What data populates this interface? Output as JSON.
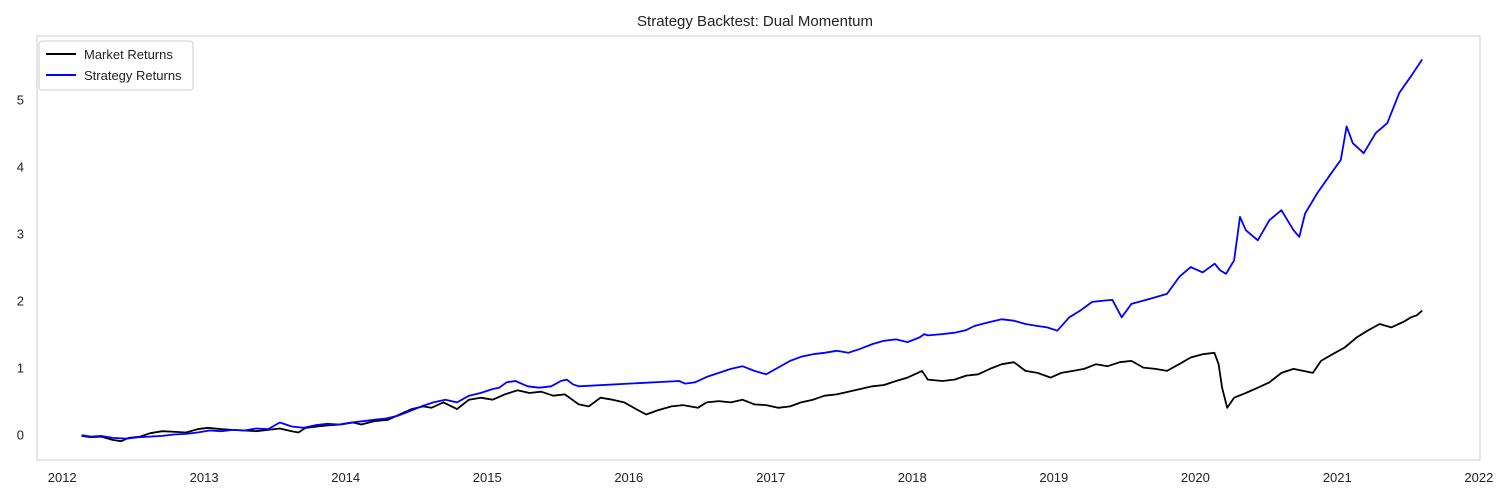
{
  "chart_data": {
    "type": "line",
    "title": "Strategy Backtest: Dual Momentum",
    "xlabel": "",
    "ylabel": "",
    "xlim": [
      "2011-10-28",
      "2022-01-04"
    ],
    "ylim": [
      -0.38,
      5.95
    ],
    "xticks": [
      "2012",
      "2013",
      "2014",
      "2015",
      "2016",
      "2017",
      "2018",
      "2019",
      "2020",
      "2021",
      "2022"
    ],
    "yticks": [
      "0",
      "1",
      "2",
      "3",
      "4",
      "5"
    ],
    "grid": false,
    "legend_position": "upper-left",
    "series": [
      {
        "name": "Market Returns",
        "color": "#000000",
        "points": [
          [
            "2012-02-20",
            -0.02
          ],
          [
            "2012-03-15",
            -0.04
          ],
          [
            "2012-04-10",
            -0.03
          ],
          [
            "2012-05-10",
            -0.08
          ],
          [
            "2012-06-01",
            -0.1
          ],
          [
            "2012-06-20",
            -0.05
          ],
          [
            "2012-07-20",
            -0.03
          ],
          [
            "2012-08-15",
            0.02
          ],
          [
            "2012-09-15",
            0.05
          ],
          [
            "2012-10-20",
            0.04
          ],
          [
            "2012-11-15",
            0.03
          ],
          [
            "2012-12-15",
            0.08
          ],
          [
            "2013-01-10",
            0.1
          ],
          [
            "2013-02-15",
            0.08
          ],
          [
            "2013-03-15",
            0.07
          ],
          [
            "2013-04-15",
            0.06
          ],
          [
            "2013-05-15",
            0.05
          ],
          [
            "2013-06-15",
            0.07
          ],
          [
            "2013-07-15",
            0.09
          ],
          [
            "2013-08-15",
            0.05
          ],
          [
            "2013-09-01",
            0.03
          ],
          [
            "2013-09-20",
            0.1
          ],
          [
            "2013-10-20",
            0.12
          ],
          [
            "2013-11-20",
            0.14
          ],
          [
            "2013-12-20",
            0.15
          ],
          [
            "2014-01-20",
            0.18
          ],
          [
            "2014-02-10",
            0.15
          ],
          [
            "2014-03-15",
            0.2
          ],
          [
            "2014-04-20",
            0.22
          ],
          [
            "2014-05-20",
            0.3
          ],
          [
            "2014-06-20",
            0.38
          ],
          [
            "2014-07-20",
            0.42
          ],
          [
            "2014-08-10",
            0.4
          ],
          [
            "2014-09-10",
            0.48
          ],
          [
            "2014-10-15",
            0.38
          ],
          [
            "2014-11-15",
            0.52
          ],
          [
            "2014-12-15",
            0.55
          ],
          [
            "2015-01-15",
            0.52
          ],
          [
            "2015-02-15",
            0.6
          ],
          [
            "2015-03-20",
            0.66
          ],
          [
            "2015-04-20",
            0.62
          ],
          [
            "2015-05-20",
            0.64
          ],
          [
            "2015-06-20",
            0.58
          ],
          [
            "2015-07-20",
            0.6
          ],
          [
            "2015-08-25",
            0.45
          ],
          [
            "2015-09-20",
            0.42
          ],
          [
            "2015-10-20",
            0.55
          ],
          [
            "2015-11-20",
            0.52
          ],
          [
            "2015-12-20",
            0.48
          ],
          [
            "2016-01-20",
            0.38
          ],
          [
            "2016-02-15",
            0.3
          ],
          [
            "2016-03-15",
            0.36
          ],
          [
            "2016-04-20",
            0.42
          ],
          [
            "2016-05-20",
            0.44
          ],
          [
            "2016-06-27",
            0.4
          ],
          [
            "2016-07-20",
            0.48
          ],
          [
            "2016-08-20",
            0.5
          ],
          [
            "2016-09-20",
            0.48
          ],
          [
            "2016-10-20",
            0.52
          ],
          [
            "2016-11-20",
            0.45
          ],
          [
            "2016-12-20",
            0.44
          ],
          [
            "2017-01-20",
            0.4
          ],
          [
            "2017-02-20",
            0.42
          ],
          [
            "2017-03-20",
            0.48
          ],
          [
            "2017-04-20",
            0.52
          ],
          [
            "2017-05-20",
            0.58
          ],
          [
            "2017-06-20",
            0.6
          ],
          [
            "2017-07-20",
            0.64
          ],
          [
            "2017-08-20",
            0.68
          ],
          [
            "2017-09-20",
            0.72
          ],
          [
            "2017-10-20",
            0.74
          ],
          [
            "2017-11-20",
            0.8
          ],
          [
            "2017-12-20",
            0.85
          ],
          [
            "2018-01-26",
            0.95
          ],
          [
            "2018-02-10",
            0.82
          ],
          [
            "2018-03-20",
            0.8
          ],
          [
            "2018-04-20",
            0.82
          ],
          [
            "2018-05-20",
            0.88
          ],
          [
            "2018-06-20",
            0.9
          ],
          [
            "2018-07-20",
            0.98
          ],
          [
            "2018-08-20",
            1.05
          ],
          [
            "2018-09-20",
            1.08
          ],
          [
            "2018-10-20",
            0.95
          ],
          [
            "2018-11-20",
            0.92
          ],
          [
            "2018-12-24",
            0.85
          ],
          [
            "2019-01-20",
            0.92
          ],
          [
            "2019-02-20",
            0.95
          ],
          [
            "2019-03-20",
            0.98
          ],
          [
            "2019-04-20",
            1.05
          ],
          [
            "2019-05-20",
            1.02
          ],
          [
            "2019-06-20",
            1.08
          ],
          [
            "2019-07-20",
            1.1
          ],
          [
            "2019-08-20",
            1.0
          ],
          [
            "2019-09-20",
            0.98
          ],
          [
            "2019-10-20",
            0.95
          ],
          [
            "2019-11-20",
            1.05
          ],
          [
            "2019-12-20",
            1.15
          ],
          [
            "2020-01-20",
            1.2
          ],
          [
            "2020-02-19",
            1.22
          ],
          [
            "2020-03-01",
            1.05
          ],
          [
            "2020-03-10",
            0.7
          ],
          [
            "2020-03-23",
            0.4
          ],
          [
            "2020-04-10",
            0.55
          ],
          [
            "2020-05-10",
            0.62
          ],
          [
            "2020-06-10",
            0.7
          ],
          [
            "2020-07-10",
            0.78
          ],
          [
            "2020-08-10",
            0.92
          ],
          [
            "2020-09-10",
            0.98
          ],
          [
            "2020-10-30",
            0.92
          ],
          [
            "2020-11-20",
            1.1
          ],
          [
            "2020-12-20",
            1.2
          ],
          [
            "2021-01-20",
            1.3
          ],
          [
            "2021-02-20",
            1.45
          ],
          [
            "2021-03-20",
            1.55
          ],
          [
            "2021-04-20",
            1.65
          ],
          [
            "2021-05-20",
            1.6
          ],
          [
            "2021-06-20",
            1.68
          ],
          [
            "2021-07-10",
            1.75
          ],
          [
            "2021-07-25",
            1.78
          ],
          [
            "2021-08-08",
            1.85
          ]
        ]
      },
      {
        "name": "Strategy Returns",
        "color": "#0000ff",
        "points": [
          [
            "2012-02-20",
            -0.01
          ],
          [
            "2012-03-15",
            -0.03
          ],
          [
            "2012-04-10",
            -0.02
          ],
          [
            "2012-05-10",
            -0.05
          ],
          [
            "2012-06-15",
            -0.06
          ],
          [
            "2012-07-15",
            -0.04
          ],
          [
            "2012-08-15",
            -0.03
          ],
          [
            "2012-09-15",
            -0.02
          ],
          [
            "2012-10-15",
            0.0
          ],
          [
            "2012-11-15",
            0.01
          ],
          [
            "2012-12-15",
            0.03
          ],
          [
            "2013-01-15",
            0.06
          ],
          [
            "2013-02-15",
            0.05
          ],
          [
            "2013-03-15",
            0.07
          ],
          [
            "2013-04-15",
            0.06
          ],
          [
            "2013-05-15",
            0.09
          ],
          [
            "2013-06-15",
            0.08
          ],
          [
            "2013-07-15",
            0.18
          ],
          [
            "2013-08-15",
            0.12
          ],
          [
            "2013-09-15",
            0.1
          ],
          [
            "2013-10-15",
            0.14
          ],
          [
            "2013-11-15",
            0.16
          ],
          [
            "2013-12-15",
            0.15
          ],
          [
            "2014-01-15",
            0.18
          ],
          [
            "2014-02-15",
            0.2
          ],
          [
            "2014-03-15",
            0.22
          ],
          [
            "2014-04-15",
            0.24
          ],
          [
            "2014-05-15",
            0.28
          ],
          [
            "2014-06-15",
            0.35
          ],
          [
            "2014-07-15",
            0.42
          ],
          [
            "2014-08-15",
            0.48
          ],
          [
            "2014-09-15",
            0.52
          ],
          [
            "2014-10-15",
            0.48
          ],
          [
            "2014-11-15",
            0.58
          ],
          [
            "2014-12-15",
            0.62
          ],
          [
            "2015-01-15",
            0.68
          ],
          [
            "2015-02-01",
            0.7
          ],
          [
            "2015-02-20",
            0.78
          ],
          [
            "2015-03-15",
            0.8
          ],
          [
            "2015-04-15",
            0.72
          ],
          [
            "2015-05-15",
            0.7
          ],
          [
            "2015-06-15",
            0.72
          ],
          [
            "2015-07-10",
            0.8
          ],
          [
            "2015-07-25",
            0.82
          ],
          [
            "2015-08-10",
            0.75
          ],
          [
            "2015-08-25",
            0.72
          ],
          [
            "2016-05-10",
            0.8
          ],
          [
            "2016-05-25",
            0.76
          ],
          [
            "2016-06-20",
            0.78
          ],
          [
            "2016-07-20",
            0.86
          ],
          [
            "2016-08-20",
            0.92
          ],
          [
            "2016-09-20",
            0.98
          ],
          [
            "2016-10-20",
            1.02
          ],
          [
            "2016-11-20",
            0.95
          ],
          [
            "2016-12-20",
            0.9
          ],
          [
            "2017-01-20",
            1.0
          ],
          [
            "2017-02-20",
            1.1
          ],
          [
            "2017-03-20",
            1.16
          ],
          [
            "2017-04-20",
            1.2
          ],
          [
            "2017-05-20",
            1.22
          ],
          [
            "2017-06-20",
            1.25
          ],
          [
            "2017-07-20",
            1.22
          ],
          [
            "2017-08-20",
            1.28
          ],
          [
            "2017-09-20",
            1.35
          ],
          [
            "2017-10-20",
            1.4
          ],
          [
            "2017-11-20",
            1.42
          ],
          [
            "2017-12-20",
            1.38
          ],
          [
            "2018-01-20",
            1.45
          ],
          [
            "2018-02-01",
            1.5
          ],
          [
            "2018-02-10",
            1.48
          ],
          [
            "2018-03-20",
            1.5
          ],
          [
            "2018-04-20",
            1.52
          ],
          [
            "2018-05-20",
            1.56
          ],
          [
            "2018-06-10",
            1.62
          ],
          [
            "2018-07-20",
            1.68
          ],
          [
            "2018-08-20",
            1.72
          ],
          [
            "2018-09-20",
            1.7
          ],
          [
            "2018-10-20",
            1.65
          ],
          [
            "2018-11-20",
            1.62
          ],
          [
            "2018-12-15",
            1.6
          ],
          [
            "2019-01-10",
            1.55
          ],
          [
            "2019-02-10",
            1.75
          ],
          [
            "2019-03-10",
            1.85
          ],
          [
            "2019-04-10",
            1.98
          ],
          [
            "2019-05-10",
            2.0
          ],
          [
            "2019-06-01",
            2.01
          ],
          [
            "2019-06-25",
            1.75
          ],
          [
            "2019-07-20",
            1.95
          ],
          [
            "2019-08-20",
            2.0
          ],
          [
            "2019-09-20",
            2.05
          ],
          [
            "2019-10-20",
            2.1
          ],
          [
            "2019-11-20",
            2.35
          ],
          [
            "2019-12-20",
            2.5
          ],
          [
            "2020-01-20",
            2.42
          ],
          [
            "2020-02-20",
            2.55
          ],
          [
            "2020-03-05",
            2.45
          ],
          [
            "2020-03-20",
            2.4
          ],
          [
            "2020-04-10",
            2.6
          ],
          [
            "2020-04-25",
            3.25
          ],
          [
            "2020-05-10",
            3.05
          ],
          [
            "2020-06-10",
            2.9
          ],
          [
            "2020-07-10",
            3.2
          ],
          [
            "2020-08-10",
            3.35
          ],
          [
            "2020-09-10",
            3.05
          ],
          [
            "2020-09-25",
            2.95
          ],
          [
            "2020-10-10",
            3.3
          ],
          [
            "2020-11-10",
            3.6
          ],
          [
            "2020-12-10",
            3.85
          ],
          [
            "2021-01-10",
            4.1
          ],
          [
            "2021-01-25",
            4.6
          ],
          [
            "2021-02-10",
            4.35
          ],
          [
            "2021-03-10",
            4.2
          ],
          [
            "2021-04-10",
            4.5
          ],
          [
            "2021-05-10",
            4.65
          ],
          [
            "2021-06-10",
            5.1
          ],
          [
            "2021-07-10",
            5.35
          ],
          [
            "2021-08-08",
            5.6
          ]
        ]
      }
    ]
  }
}
